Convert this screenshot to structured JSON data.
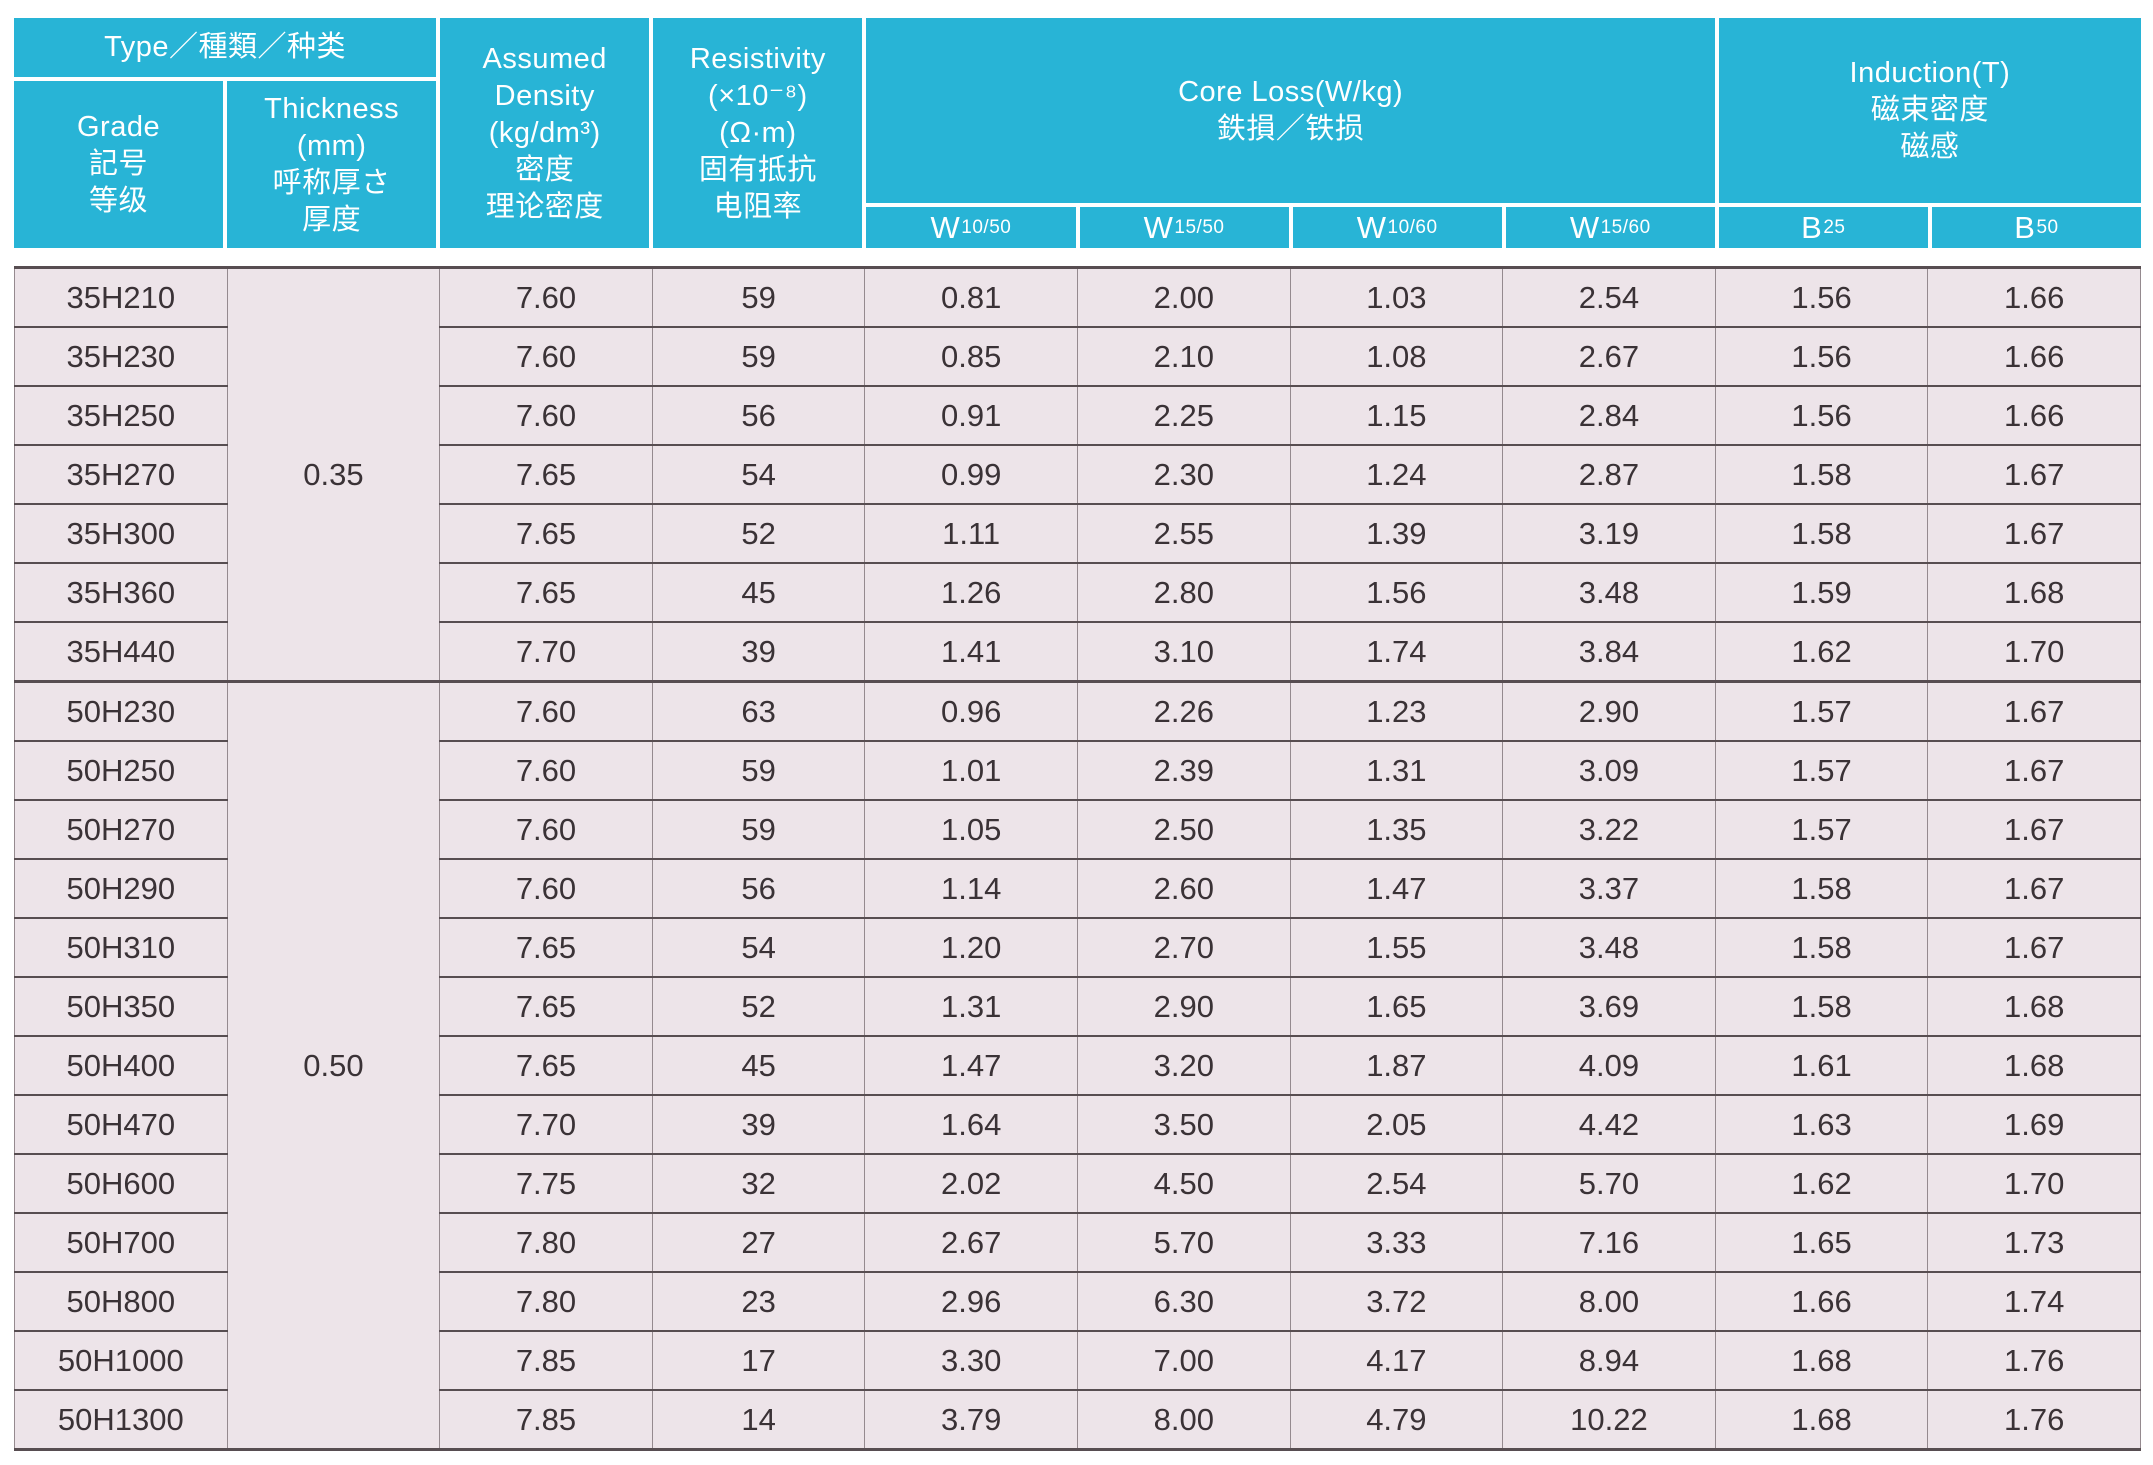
{
  "colors": {
    "header_bg": "#28B4D6",
    "header_text": "#FFFFFF",
    "row_bg": "#EDE4E9",
    "data_text": "#3A3236",
    "row_line": "#574D51",
    "column_line": "#958A8F",
    "page_bg": "#FFFFFF"
  },
  "header": {
    "type_group": "Type／種類／种类",
    "grade": "Grade\n記号\n等级",
    "thickness": "Thickness\n(mm)\n呼称厚さ\n厚度",
    "density": "Assumed\nDensity\n(kg/dm³)\n密度\n理论密度",
    "resistivity": "Resistivity\n(×10⁻⁸)\n(Ω·m)\n固有抵抗\n电阻率",
    "core_loss": "Core Loss(W/kg)\n鉄損／铁损",
    "induction": "Induction(T)\n磁束密度\n磁感",
    "sub_columns": [
      {
        "main": "W",
        "sub": "10/50"
      },
      {
        "main": "W",
        "sub": "15/50"
      },
      {
        "main": "W",
        "sub": "10/60"
      },
      {
        "main": "W",
        "sub": "15/60"
      },
      {
        "main": "B",
        "sub": "25"
      },
      {
        "main": "B",
        "sub": "50"
      }
    ]
  },
  "groups": [
    {
      "thickness": "0.35",
      "row_count": 7
    },
    {
      "thickness": "0.50",
      "row_count": 13
    }
  ],
  "rows": [
    {
      "grade": "35H210",
      "density": "7.60",
      "resistivity": "59",
      "w10_50": "0.81",
      "w15_50": "2.00",
      "w10_60": "1.03",
      "w15_60": "2.54",
      "b25": "1.56",
      "b50": "1.66"
    },
    {
      "grade": "35H230",
      "density": "7.60",
      "resistivity": "59",
      "w10_50": "0.85",
      "w15_50": "2.10",
      "w10_60": "1.08",
      "w15_60": "2.67",
      "b25": "1.56",
      "b50": "1.66"
    },
    {
      "grade": "35H250",
      "density": "7.60",
      "resistivity": "56",
      "w10_50": "0.91",
      "w15_50": "2.25",
      "w10_60": "1.15",
      "w15_60": "2.84",
      "b25": "1.56",
      "b50": "1.66"
    },
    {
      "grade": "35H270",
      "density": "7.65",
      "resistivity": "54",
      "w10_50": "0.99",
      "w15_50": "2.30",
      "w10_60": "1.24",
      "w15_60": "2.87",
      "b25": "1.58",
      "b50": "1.67"
    },
    {
      "grade": "35H300",
      "density": "7.65",
      "resistivity": "52",
      "w10_50": "1.11",
      "w15_50": "2.55",
      "w10_60": "1.39",
      "w15_60": "3.19",
      "b25": "1.58",
      "b50": "1.67"
    },
    {
      "grade": "35H360",
      "density": "7.65",
      "resistivity": "45",
      "w10_50": "1.26",
      "w15_50": "2.80",
      "w10_60": "1.56",
      "w15_60": "3.48",
      "b25": "1.59",
      "b50": "1.68"
    },
    {
      "grade": "35H440",
      "density": "7.70",
      "resistivity": "39",
      "w10_50": "1.41",
      "w15_50": "3.10",
      "w10_60": "1.74",
      "w15_60": "3.84",
      "b25": "1.62",
      "b50": "1.70"
    },
    {
      "grade": "50H230",
      "density": "7.60",
      "resistivity": "63",
      "w10_50": "0.96",
      "w15_50": "2.26",
      "w10_60": "1.23",
      "w15_60": "2.90",
      "b25": "1.57",
      "b50": "1.67"
    },
    {
      "grade": "50H250",
      "density": "7.60",
      "resistivity": "59",
      "w10_50": "1.01",
      "w15_50": "2.39",
      "w10_60": "1.31",
      "w15_60": "3.09",
      "b25": "1.57",
      "b50": "1.67"
    },
    {
      "grade": "50H270",
      "density": "7.60",
      "resistivity": "59",
      "w10_50": "1.05",
      "w15_50": "2.50",
      "w10_60": "1.35",
      "w15_60": "3.22",
      "b25": "1.57",
      "b50": "1.67"
    },
    {
      "grade": "50H290",
      "density": "7.60",
      "resistivity": "56",
      "w10_50": "1.14",
      "w15_50": "2.60",
      "w10_60": "1.47",
      "w15_60": "3.37",
      "b25": "1.58",
      "b50": "1.67"
    },
    {
      "grade": "50H310",
      "density": "7.65",
      "resistivity": "54",
      "w10_50": "1.20",
      "w15_50": "2.70",
      "w10_60": "1.55",
      "w15_60": "3.48",
      "b25": "1.58",
      "b50": "1.67"
    },
    {
      "grade": "50H350",
      "density": "7.65",
      "resistivity": "52",
      "w10_50": "1.31",
      "w15_50": "2.90",
      "w10_60": "1.65",
      "w15_60": "3.69",
      "b25": "1.58",
      "b50": "1.68"
    },
    {
      "grade": "50H400",
      "density": "7.65",
      "resistivity": "45",
      "w10_50": "1.47",
      "w15_50": "3.20",
      "w10_60": "1.87",
      "w15_60": "4.09",
      "b25": "1.61",
      "b50": "1.68"
    },
    {
      "grade": "50H470",
      "density": "7.70",
      "resistivity": "39",
      "w10_50": "1.64",
      "w15_50": "3.50",
      "w10_60": "2.05",
      "w15_60": "4.42",
      "b25": "1.63",
      "b50": "1.69"
    },
    {
      "grade": "50H600",
      "density": "7.75",
      "resistivity": "32",
      "w10_50": "2.02",
      "w15_50": "4.50",
      "w10_60": "2.54",
      "w15_60": "5.70",
      "b25": "1.62",
      "b50": "1.70"
    },
    {
      "grade": "50H700",
      "density": "7.80",
      "resistivity": "27",
      "w10_50": "2.67",
      "w15_50": "5.70",
      "w10_60": "3.33",
      "w15_60": "7.16",
      "b25": "1.65",
      "b50": "1.73"
    },
    {
      "grade": "50H800",
      "density": "7.80",
      "resistivity": "23",
      "w10_50": "2.96",
      "w15_50": "6.30",
      "w10_60": "3.72",
      "w15_60": "8.00",
      "b25": "1.66",
      "b50": "1.74"
    },
    {
      "grade": "50H1000",
      "density": "7.85",
      "resistivity": "17",
      "w10_50": "3.30",
      "w15_50": "7.00",
      "w10_60": "4.17",
      "w15_60": "8.94",
      "b25": "1.68",
      "b50": "1.76"
    },
    {
      "grade": "50H1300",
      "density": "7.85",
      "resistivity": "14",
      "w10_50": "3.79",
      "w15_50": "8.00",
      "w10_60": "4.79",
      "w15_60": "10.22",
      "b25": "1.68",
      "b50": "1.76"
    }
  ]
}
